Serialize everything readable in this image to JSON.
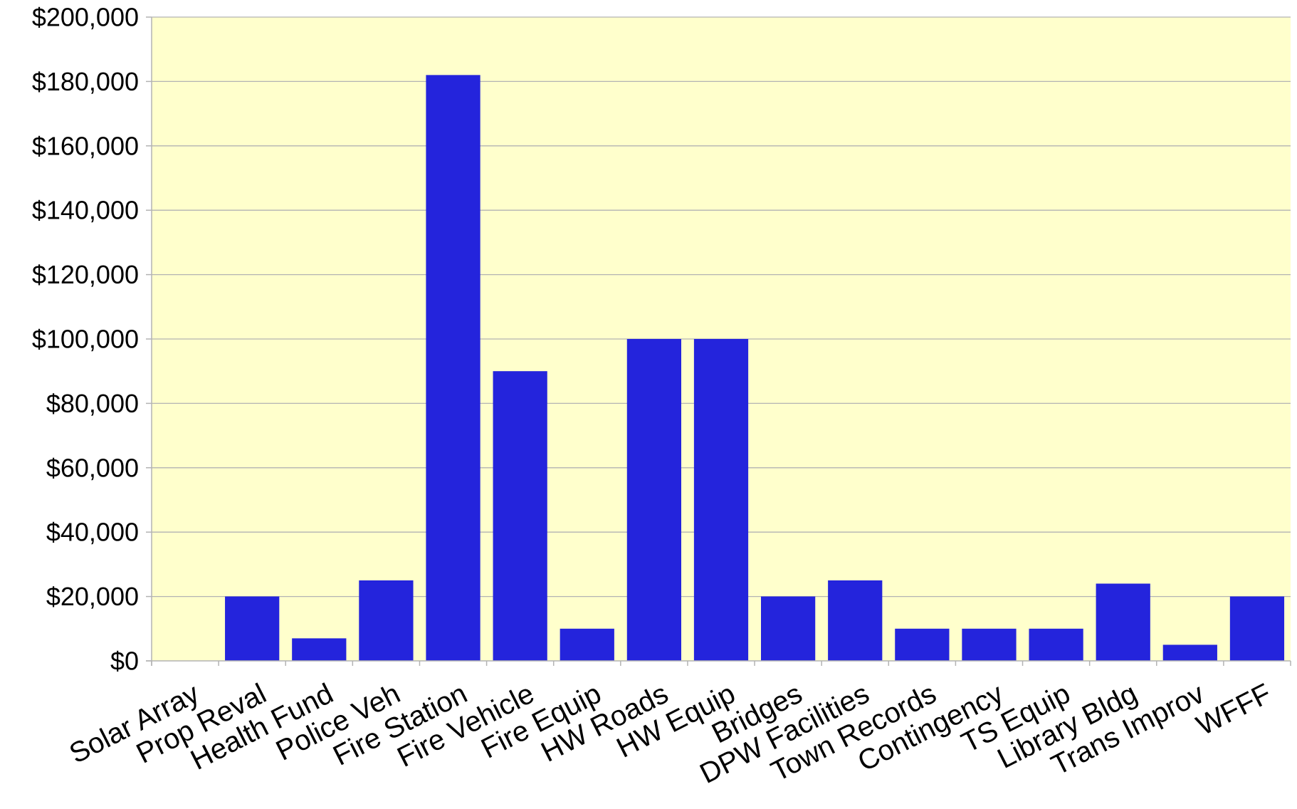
{
  "chart_data": {
    "type": "bar",
    "title": "",
    "xlabel": "",
    "ylabel": "",
    "categories": [
      "Solar Array",
      "Prop Reval",
      "Health Fund",
      "Police Veh",
      "Fire Station",
      "Fire Vehicle",
      "Fire Equip",
      "HW Roads",
      "HW Equip",
      "Bridges",
      "DPW Facilities",
      "Town Records",
      "Contingency",
      "TS Equip",
      "Library Bldg",
      "Trans Improv",
      "WFFF"
    ],
    "values": [
      0,
      20000,
      7000,
      25000,
      182000,
      90000,
      10000,
      100000,
      100000,
      20000,
      25000,
      10000,
      10000,
      10000,
      24000,
      5000,
      20000
    ],
    "ylim": [
      0,
      200000
    ],
    "y_ticks": [
      0,
      20000,
      40000,
      60000,
      80000,
      100000,
      120000,
      140000,
      160000,
      180000,
      200000
    ],
    "y_tick_labels": [
      "$0",
      "$20,000",
      "$40,000",
      "$60,000",
      "$80,000",
      "$100,000",
      "$120,000",
      "$140,000",
      "$160,000",
      "$180,000",
      "$200,000"
    ],
    "grid": true,
    "legend": "none",
    "colors": {
      "bar": "#2424dc",
      "plot_background": "#ffffcc",
      "grid": "#b3b3b3",
      "axis": "#b3b3b3"
    }
  }
}
